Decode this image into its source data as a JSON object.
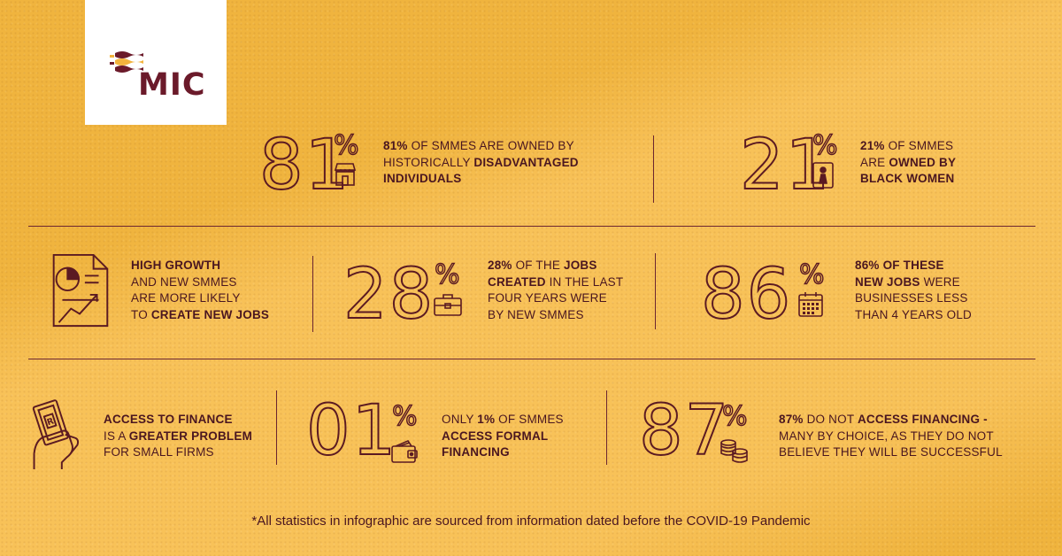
{
  "brand": {
    "name": "MIC"
  },
  "colors": {
    "background": "#f0b43e",
    "ink": "#5b1a22",
    "logo_bg": "#ffffff",
    "logo_text": "#6b1a2a"
  },
  "stats": {
    "disadvantaged": {
      "number": "81",
      "percent_sign": "%",
      "icon": "storefront-icon",
      "lines": [
        [
          {
            "t": "81% ",
            "b": true
          },
          {
            "t": "OF SMMEs ARE OWNED BY",
            "b": false
          }
        ],
        [
          {
            "t": "HISTORICALLY ",
            "b": false
          },
          {
            "t": "DISADVANTAGED",
            "b": true
          }
        ],
        [
          {
            "t": "INDIVIDUALS",
            "b": true
          }
        ]
      ]
    },
    "black_women": {
      "number": "21",
      "percent_sign": "%",
      "icon": "woman-icon",
      "lines": [
        [
          {
            "t": "21% ",
            "b": true
          },
          {
            "t": "OF SMMEs",
            "b": false
          }
        ],
        [
          {
            "t": "ARE ",
            "b": false
          },
          {
            "t": "OWNED BY",
            "b": true
          }
        ],
        [
          {
            "t": "BLACK WOMEN",
            "b": true
          }
        ]
      ]
    },
    "high_growth": {
      "icon": "growth-report-icon",
      "lines": [
        [
          {
            "t": "HIGH GROWTH",
            "b": true
          }
        ],
        [
          {
            "t": "AND NEW SMMEs",
            "b": false
          }
        ],
        [
          {
            "t": "ARE MORE LIKELY",
            "b": false
          }
        ],
        [
          {
            "t": "TO ",
            "b": false
          },
          {
            "t": "CREATE NEW JOBS",
            "b": true
          }
        ]
      ]
    },
    "jobs_created": {
      "number": "28",
      "percent_sign": "%",
      "icon": "briefcase-icon",
      "lines": [
        [
          {
            "t": "28% ",
            "b": true
          },
          {
            "t": "OF THE ",
            "b": false
          },
          {
            "t": "JOBS",
            "b": true
          }
        ],
        [
          {
            "t": "CREATED ",
            "b": true
          },
          {
            "t": "IN THE LAST",
            "b": false
          }
        ],
        [
          {
            "t": "FOUR YEARS WERE",
            "b": false
          }
        ],
        [
          {
            "t": "BY NEW SMMEs",
            "b": false
          }
        ]
      ]
    },
    "new_jobs": {
      "number": "86",
      "percent_sign": "%",
      "icon": "calendar-icon",
      "lines": [
        [
          {
            "t": "86% ",
            "b": true
          },
          {
            "t": "OF THESE",
            "b": true
          }
        ],
        [
          {
            "t": "NEW JOBS ",
            "b": true
          },
          {
            "t": "WERE",
            "b": false
          }
        ],
        [
          {
            "t": "BUSINESSES LESS",
            "b": false
          }
        ],
        [
          {
            "t": "THAN 4 YEARS OLD",
            "b": false
          }
        ]
      ]
    },
    "access_finance": {
      "icon": "hand-banknote-icon",
      "lines": [
        [
          {
            "t": "ACCESS TO FINANCE",
            "b": true
          }
        ],
        [
          {
            "t": "IS A ",
            "b": false
          },
          {
            "t": "GREATER PROBLEM",
            "b": true
          }
        ],
        [
          {
            "t": "FOR SMALL FIRMS",
            "b": false
          }
        ]
      ]
    },
    "formal_financing": {
      "number": "01",
      "percent_sign": "%",
      "icon": "wallet-icon",
      "lines": [
        [
          {
            "t": "ONLY ",
            "b": false
          },
          {
            "t": "1%",
            "b": true
          },
          {
            "t": " OF SMMEs",
            "b": false
          }
        ],
        [
          {
            "t": "ACCESS FORMAL",
            "b": true
          }
        ],
        [
          {
            "t": "FINANCING",
            "b": true
          }
        ]
      ]
    },
    "no_financing": {
      "number": "87",
      "percent_sign": "%",
      "icon": "coins-icon",
      "lines": [
        [
          {
            "t": "87%",
            "b": true
          },
          {
            "t": " DO NOT ",
            "b": false
          },
          {
            "t": "ACCESS FINANCING -",
            "b": true
          }
        ],
        [
          {
            "t": "MANY BY CHOICE, AS THEY DO NOT",
            "b": false
          }
        ],
        [
          {
            "t": "BELIEVE THEY WILL BE SUCCESSFUL",
            "b": false
          }
        ]
      ]
    }
  },
  "footnote": "*All statistics in infographic are sourced from information dated before the COVID-19 Pandemic"
}
